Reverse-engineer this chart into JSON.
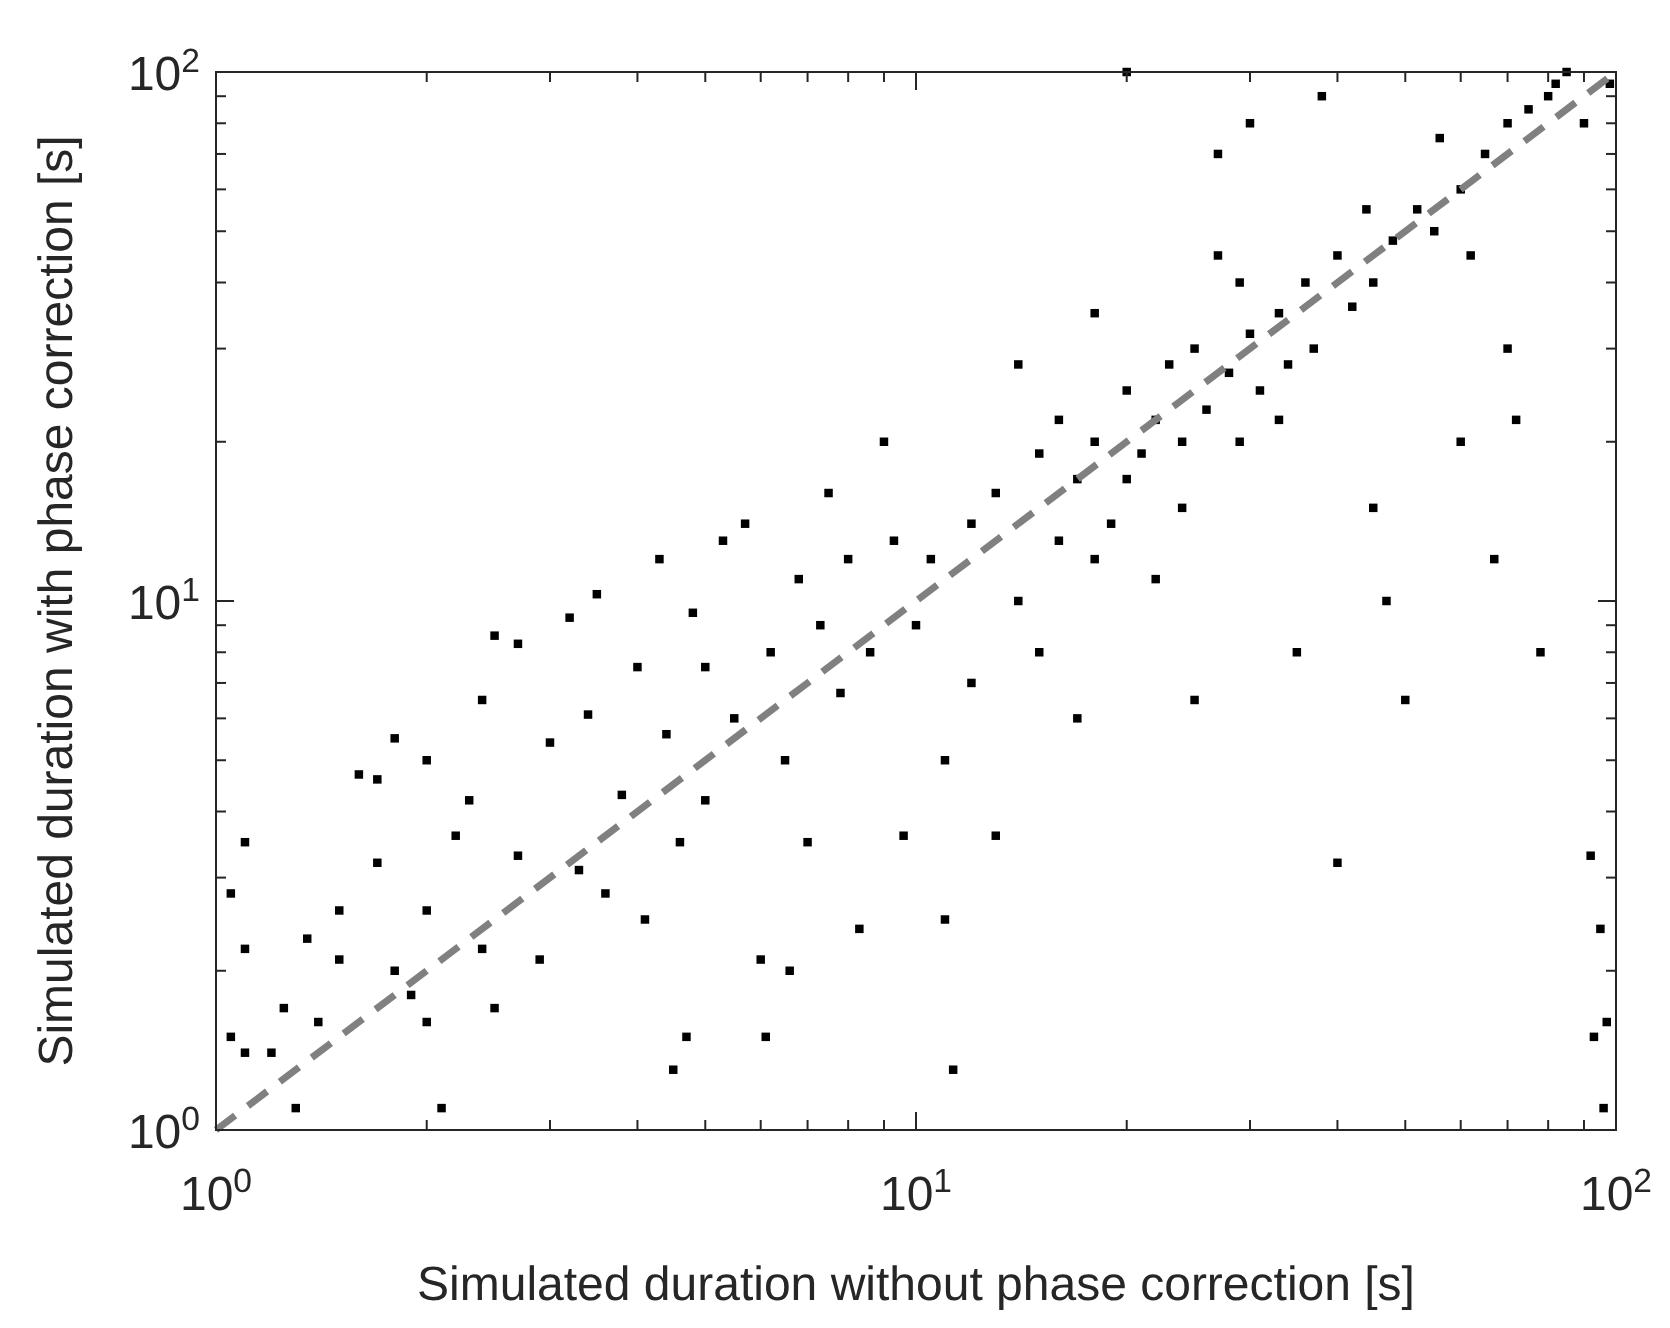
{
  "chart_data": {
    "type": "scatter",
    "xlabel": "Simulated duration without phase correction [s]",
    "ylabel": "Simulated duration with phase correction [s]",
    "log": "xy",
    "xlim": [
      1,
      100
    ],
    "ylim": [
      1,
      100
    ],
    "grid": false,
    "xticks": [
      {
        "value": 1,
        "label": "10$^{0}$"
      },
      {
        "value": 2,
        "label": null
      },
      {
        "value": 3,
        "label": null
      },
      {
        "value": 4,
        "label": null
      },
      {
        "value": 5,
        "label": null
      },
      {
        "value": 6,
        "label": null
      },
      {
        "value": 7,
        "label": null
      },
      {
        "value": 8,
        "label": null
      },
      {
        "value": 9,
        "label": null
      },
      {
        "value": 10,
        "label": "10$^{1}$"
      },
      {
        "value": 20,
        "label": null
      },
      {
        "value": 30,
        "label": null
      },
      {
        "value": 40,
        "label": null
      },
      {
        "value": 50,
        "label": null
      },
      {
        "value": 60,
        "label": null
      },
      {
        "value": 70,
        "label": null
      },
      {
        "value": 80,
        "label": null
      },
      {
        "value": 90,
        "label": null
      },
      {
        "value": 100,
        "label": "10$^{2}$"
      }
    ],
    "yticks": [
      {
        "value": 1,
        "label": "10$^{0}$"
      },
      {
        "value": 2,
        "label": null
      },
      {
        "value": 3,
        "label": null
      },
      {
        "value": 4,
        "label": null
      },
      {
        "value": 5,
        "label": null
      },
      {
        "value": 6,
        "label": null
      },
      {
        "value": 7,
        "label": null
      },
      {
        "value": 8,
        "label": null
      },
      {
        "value": 9,
        "label": null
      },
      {
        "value": 10,
        "label": "10$^{1}$"
      },
      {
        "value": 20,
        "label": null
      },
      {
        "value": 30,
        "label": null
      },
      {
        "value": 40,
        "label": null
      },
      {
        "value": 50,
        "label": null
      },
      {
        "value": 60,
        "label": null
      },
      {
        "value": 70,
        "label": null
      },
      {
        "value": 80,
        "label": null
      },
      {
        "value": 90,
        "label": null
      },
      {
        "value": 100,
        "label": "10$^{2}$"
      }
    ],
    "series": [
      {
        "marker": "square",
        "color": "#000000",
        "x": [
          1.05,
          1.1,
          1.1,
          1.05,
          1.1,
          1.2,
          1.3,
          1.25,
          1.35,
          1.4,
          1.5,
          1.5,
          1.6,
          1.7,
          1.8,
          1.7,
          1.8,
          1.9,
          2.0,
          2.0,
          2.0,
          2.1,
          2.2,
          2.3,
          2.4,
          2.4,
          2.5,
          2.5,
          2.7,
          2.7,
          2.9,
          3.0,
          3.2,
          3.3,
          3.4,
          3.5,
          3.6,
          3.8,
          4.0,
          4.1,
          4.3,
          4.4,
          4.5,
          4.6,
          4.7,
          4.8,
          5.0,
          5.0,
          5.3,
          5.5,
          5.7,
          6.0,
          6.1,
          6.2,
          6.5,
          6.6,
          6.8,
          7,
          7.3,
          7.5,
          7.8,
          8,
          8.3,
          8.6,
          9,
          9.3,
          9.6,
          10,
          10.5,
          11,
          11,
          11.3,
          12,
          12,
          13,
          13,
          14,
          14,
          15,
          15,
          16,
          16,
          17,
          17,
          18,
          18,
          19,
          20,
          20,
          20,
          21,
          22,
          22,
          23,
          24,
          25,
          25,
          26,
          27,
          28,
          29,
          30,
          30,
          31,
          33,
          34,
          35,
          36,
          37,
          38,
          40,
          40,
          42,
          44,
          45,
          47,
          48,
          50,
          52,
          55,
          56,
          60,
          62,
          65,
          67,
          70,
          70,
          72,
          75,
          78,
          80,
          82,
          85,
          90,
          92,
          93,
          95,
          96,
          98,
          97,
          60,
          45,
          27,
          18,
          24,
          29,
          33
        ],
        "values": [
          2.8,
          3.5,
          2.2,
          1.5,
          1.4,
          1.4,
          1.1,
          1.7,
          2.3,
          1.6,
          2.6,
          2.1,
          4.7,
          4.6,
          5.5,
          3.2,
          2.0,
          1.8,
          1.6,
          2.6,
          5.0,
          1.1,
          3.6,
          4.2,
          6.5,
          2.2,
          8.6,
          1.7,
          8.3,
          3.3,
          2.1,
          5.4,
          9.3,
          3.1,
          6.1,
          10.3,
          2.8,
          4.3,
          7.5,
          2.5,
          12,
          5.6,
          1.3,
          3.5,
          1.5,
          9.5,
          7.5,
          4.2,
          13,
          6,
          14,
          2.1,
          1.5,
          8,
          5,
          2.0,
          11,
          3.5,
          9,
          16,
          6.7,
          12,
          2.4,
          8,
          20,
          13,
          3.6,
          9,
          12,
          2.5,
          5,
          1.3,
          14,
          7,
          16,
          3.6,
          28,
          10,
          19,
          8,
          22,
          13,
          6,
          17,
          35,
          20,
          14,
          100,
          25,
          17,
          19,
          22,
          11,
          28,
          20,
          6.5,
          30,
          23,
          45,
          27,
          20,
          32,
          80,
          25,
          35,
          28,
          8,
          40,
          30,
          90,
          3.2,
          45,
          36,
          55,
          40,
          10,
          48,
          6.5,
          55,
          50,
          75,
          60,
          45,
          70,
          12,
          30,
          80,
          22,
          85,
          8,
          90,
          95,
          100,
          80,
          3.3,
          1.5,
          2.4,
          1.1,
          95,
          1.6,
          20,
          15,
          70,
          12,
          15,
          40,
          22
        ]
      },
      {
        "type": "line",
        "color": "#808080",
        "line_style": "dashed",
        "x": [
          1,
          100
        ],
        "values": [
          1,
          100
        ]
      }
    ]
  }
}
